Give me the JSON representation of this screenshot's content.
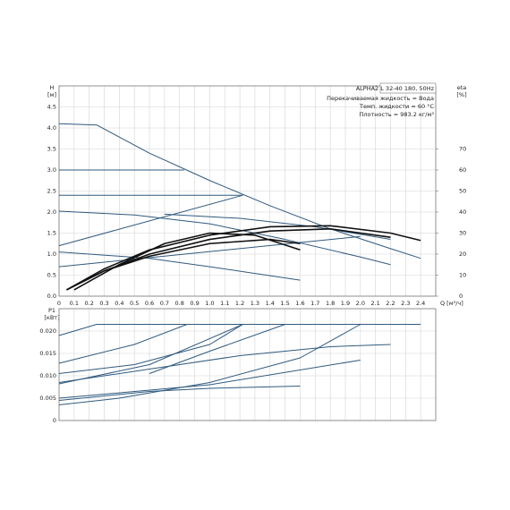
{
  "chart_data": [
    {
      "type": "line",
      "title": "ALPHA2 L 32-40 180, 50Hz",
      "annotations": [
        "Перекачиваемая жидкость = Вода",
        "Темп. жидкости = 60 °C",
        "Плотность = 983.2 кг/м³"
      ],
      "ylabel": "H",
      "ylabel_unit": "[м]",
      "y2label": "eta",
      "y2label_unit": "[%]",
      "xlabel": "Q [м³/ч]",
      "xlim": [
        0,
        2.5
      ],
      "ylim": [
        0,
        5
      ],
      "y2lim": [
        0,
        100
      ],
      "grid": true,
      "xticks": [
        0,
        0.1,
        0.2,
        0.3,
        0.4,
        0.5,
        0.6,
        0.7,
        0.8,
        0.9,
        {
          "value": 1,
          "label": "1.0"
        },
        1.1,
        1.2,
        1.3,
        1.4,
        1.5,
        1.6,
        1.7,
        1.8,
        1.9,
        {
          "value": 2,
          "label": "2.0"
        },
        2.1,
        2.2,
        2.3,
        2.4
      ],
      "yticks": [
        {
          "value": 0,
          "label": "0.0"
        },
        0.5,
        {
          "value": 1,
          "label": "1.0"
        },
        1.5,
        {
          "value": 2,
          "label": "2.0"
        },
        2.5,
        {
          "value": 3,
          "label": "3.0"
        },
        3.5,
        {
          "value": 4,
          "label": "4.0"
        },
        4.5
      ],
      "y2ticks": [
        0,
        10,
        20,
        30,
        40,
        50,
        60,
        70
      ],
      "series": [
        {
          "color": "#2f5a7e",
          "x": [
            0,
            0.25,
            0.6,
            1.0,
            1.4,
            1.8,
            2.2,
            2.4
          ],
          "values": [
            4.1,
            4.07,
            3.4,
            2.75,
            2.15,
            1.6,
            1.13,
            0.9
          ]
        },
        {
          "color": "#2f5a7e",
          "x": [
            0,
            0.83
          ],
          "values": [
            3.0,
            3.0
          ]
        },
        {
          "color": "#2f5a7e",
          "x": [
            0,
            1.22
          ],
          "values": [
            2.4,
            2.4
          ]
        },
        {
          "color": "#2f5a7e",
          "x": [
            0,
            1.22
          ],
          "values": [
            1.2,
            2.4
          ]
        },
        {
          "color": "#2f5a7e",
          "x": [
            0,
            0.5,
            1.0,
            1.5,
            2.0,
            2.2
          ],
          "values": [
            2.02,
            1.93,
            1.72,
            1.35,
            0.93,
            0.75
          ]
        },
        {
          "color": "#2f5a7e",
          "x": [
            0,
            2.0
          ],
          "values": [
            0.7,
            1.42
          ]
        },
        {
          "color": "#2f5a7e",
          "x": [
            0,
            0.6,
            1.0,
            1.6
          ],
          "values": [
            1.05,
            0.9,
            0.7,
            0.38
          ]
        },
        {
          "color": "#2f5a7e",
          "x": [
            0.7,
            1.2,
            1.7,
            2.2
          ],
          "values": [
            1.95,
            1.85,
            1.65,
            1.35
          ]
        },
        {
          "color": "#111111",
          "axis": "y2",
          "x": [
            0.05,
            0.3,
            0.6,
            1.0,
            1.4,
            1.8,
            2.2,
            2.4
          ],
          "values": [
            3,
            13,
            22,
            29,
            33,
            33.5,
            30,
            26.5
          ]
        },
        {
          "color": "#111111",
          "axis": "y2",
          "x": [
            0.05,
            0.3,
            0.6,
            1.0,
            1.4,
            1.8,
            2.2
          ],
          "values": [
            3,
            12,
            20,
            27,
            31,
            32,
            28
          ]
        },
        {
          "color": "#111111",
          "axis": "y2",
          "x": [
            0.05,
            0.3,
            0.6,
            1.0,
            1.4,
            1.6
          ],
          "values": [
            3,
            12,
            19,
            25,
            27,
            25
          ]
        },
        {
          "color": "#111111",
          "axis": "y2",
          "x": [
            0.1,
            0.4,
            0.7,
            1.0,
            1.3,
            1.6
          ],
          "values": [
            3,
            15,
            25,
            30,
            29,
            22
          ]
        }
      ]
    },
    {
      "type": "line",
      "ylabel": "P1",
      "ylabel_unit": "[кВт]",
      "xlim": [
        0,
        2.5
      ],
      "ylim": [
        0,
        0.025
      ],
      "grid": true,
      "xticks": [
        0.1,
        0.2,
        0.3,
        0.4,
        0.5,
        0.6,
        0.7,
        0.8,
        0.9,
        1,
        1.1,
        1.2,
        1.3,
        1.4,
        1.5,
        1.6,
        1.7,
        1.8,
        1.9,
        2,
        2.1,
        2.2,
        2.3,
        2.4
      ],
      "yticks": [
        0,
        0.005,
        {
          "value": 0.01,
          "label": "0.010"
        },
        0.015,
        {
          "value": 0.02,
          "label": "0.020"
        }
      ],
      "series": [
        {
          "color": "#2f5a7e",
          "x": [
            0,
            0.25,
            2.4
          ],
          "values": [
            0.019,
            0.0215,
            0.0215
          ]
        },
        {
          "color": "#2f5a7e",
          "x": [
            0,
            0.5,
            0.85
          ],
          "values": [
            0.0128,
            0.017,
            0.0215
          ]
        },
        {
          "color": "#2f5a7e",
          "x": [
            0,
            0.5,
            1.0,
            1.22
          ],
          "values": [
            0.0105,
            0.0125,
            0.017,
            0.0215
          ]
        },
        {
          "color": "#2f5a7e",
          "x": [
            0,
            0.6,
            1.22
          ],
          "values": [
            0.0082,
            0.0125,
            0.0215
          ]
        },
        {
          "color": "#2f5a7e",
          "x": [
            0,
            0.4,
            1.0,
            1.6,
            2.0
          ],
          "values": [
            0.0035,
            0.005,
            0.0085,
            0.014,
            0.0215
          ]
        },
        {
          "color": "#2f5a7e",
          "x": [
            0,
            0.6,
            1.2,
            1.8,
            2.2
          ],
          "values": [
            0.0085,
            0.0115,
            0.0145,
            0.0165,
            0.017
          ]
        },
        {
          "color": "#2f5a7e",
          "x": [
            0,
            1.0,
            2.0
          ],
          "values": [
            0.005,
            0.008,
            0.0135
          ]
        },
        {
          "color": "#2f5a7e",
          "x": [
            0,
            0.6,
            1.0,
            1.6
          ],
          "values": [
            0.0045,
            0.0065,
            0.0072,
            0.0077
          ]
        },
        {
          "color": "#2f5a7e",
          "x": [
            0.6,
            1.0,
            1.5
          ],
          "values": [
            0.0105,
            0.0155,
            0.0215
          ]
        }
      ]
    }
  ]
}
